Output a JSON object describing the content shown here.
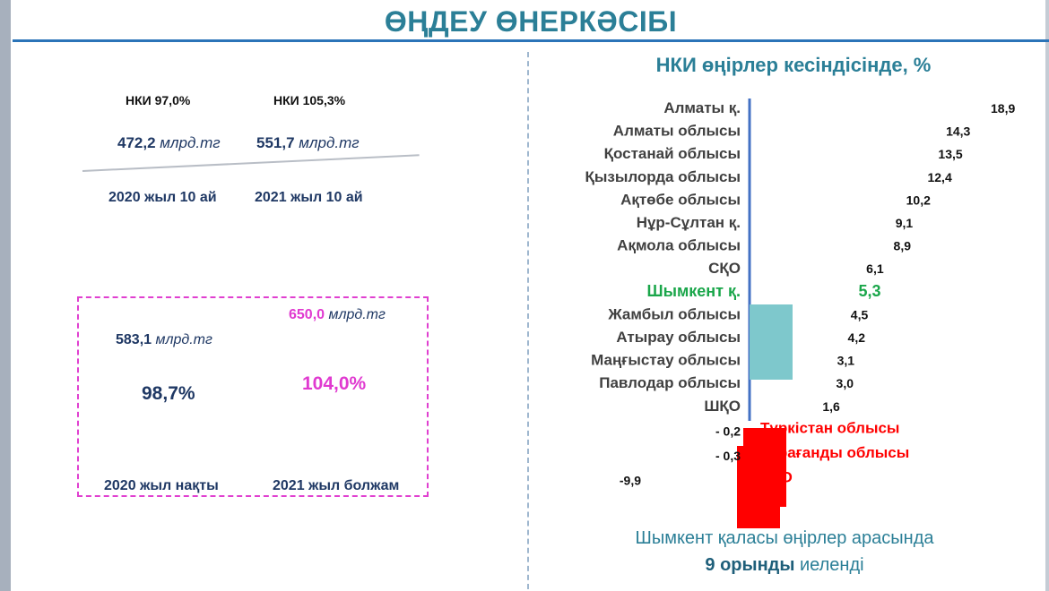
{
  "title": "ӨҢДЕУ ӨНЕРКӘСІБІ",
  "left": {
    "top": {
      "nki_2020": "НКИ 97,0%",
      "nki_2021": "НКИ 105,3%",
      "value_2020_num": "472,2",
      "value_2021_num": "551,7",
      "unit": "млрд.тг",
      "label_2020": "2020 жыл 10 ай",
      "label_2021": "2021 жыл 10 ай"
    },
    "box": {
      "value_2020_num": "583,1",
      "value_2021_num": "650,0",
      "unit": "млрд.тг",
      "pct_2020": "98,7%",
      "pct_2021": "104,0%",
      "label_2020": "2020 жыл нақты",
      "label_2021": "2021 жыл болжам"
    }
  },
  "right": {
    "chart_title": "НКИ өңірлер кесіндісінде, %",
    "footer_line1": "Шымкент қаласы өңірлер арасында",
    "footer_strong": "9 орынды",
    "footer_rest": " иеленді"
  },
  "colors": {
    "title": "#2b7f97",
    "highlight": "#1aa64a",
    "bar_positive": "#7ec8cc",
    "bar_negative": "#ff0000",
    "axis": "#4472c4",
    "magenta": "#e03ad0"
  },
  "chart_data": {
    "type": "bar",
    "orientation": "horizontal",
    "title": "НКИ өңірлер кесіндісінде, %",
    "categories": [
      "Алматы қ.",
      "Алматы облысы",
      "Қостанай облысы",
      "Қызылорда облысы",
      "Ақтөбе облысы",
      "Нұр-Сұлтан қ.",
      "Ақмола облысы",
      "СҚО",
      "Шымкент қ.",
      "Жамбыл облысы",
      "Атырау облысы",
      "Маңғыстау облысы",
      "Павлодар облысы",
      "ШҚО",
      "Түркістан облысы",
      "Қарағанды облысы",
      "БҚО"
    ],
    "value_labels": [
      "18,9",
      "14,3",
      "13,5",
      "12,4",
      "10,2",
      "9,1",
      "8,9",
      "6,1",
      "5,3",
      "4,5",
      "4,2",
      "3,1",
      "3,0",
      "1,6",
      "- 0,2",
      "- 0,3",
      "-9,9"
    ],
    "values": [
      18.9,
      14.3,
      13.5,
      12.4,
      10.2,
      9.1,
      8.9,
      6.1,
      5.3,
      4.5,
      4.2,
      3.1,
      3.0,
      1.6,
      -0.2,
      -0.3,
      -9.9
    ],
    "highlight": "Шымкент қ."
  }
}
